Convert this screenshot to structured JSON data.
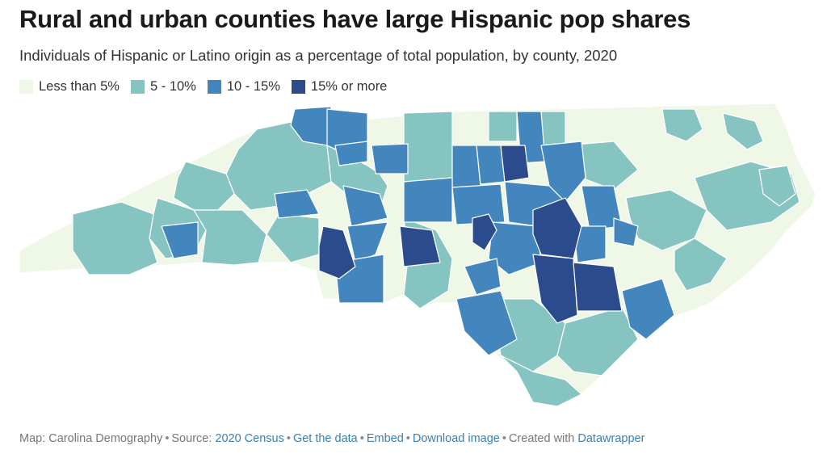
{
  "title": "Rural and urban counties have large Hispanic pop shares",
  "subtitle": "Individuals of Hispanic or Latino origin as a percentage of total population, by county, 2020",
  "legend": [
    {
      "label": "Less than 5%",
      "color": "#eff7e6"
    },
    {
      "label": "5 - 10%",
      "color": "#86c4c1"
    },
    {
      "label": "10 - 15%",
      "color": "#4386bd"
    },
    {
      "label": "15% or more",
      "color": "#2c4b8c"
    }
  ],
  "footer": {
    "map_prefix": "Map: Carolina Demography",
    "source_prefix": "Source:",
    "source_link": "2020 Census",
    "get_data": "Get the data",
    "embed": "Embed",
    "download": "Download image",
    "created_prefix": "Created with",
    "datawrapper": "Datawrapper"
  }
}
